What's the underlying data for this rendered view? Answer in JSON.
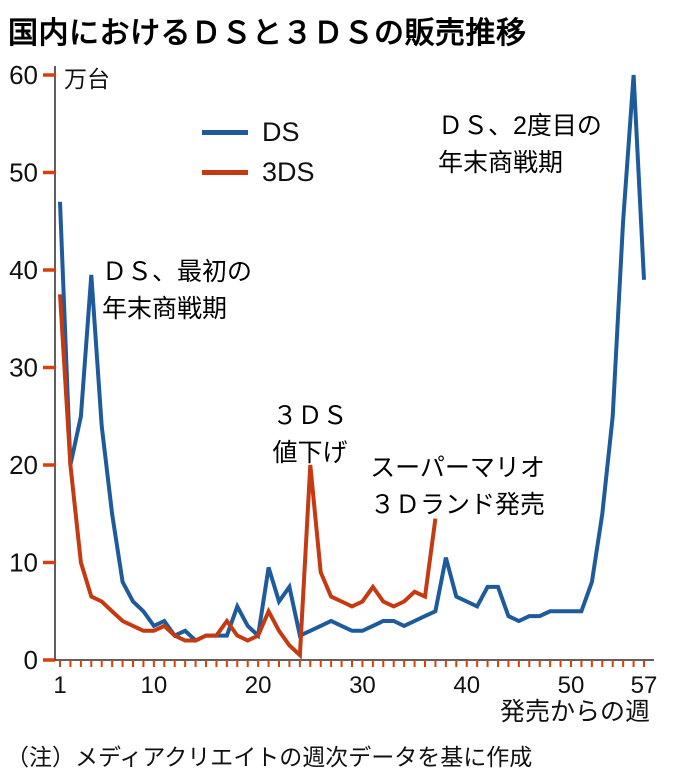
{
  "title": "国内におけるＤＳと３ＤＳの販売推移",
  "unit_label": "万台",
  "note": "（注）メディアクリエイトの週次データを基に作成",
  "chart_data": {
    "type": "line",
    "title": "国内におけるＤＳと３ＤＳの販売推移",
    "unit_label": "万台",
    "xlabel": "発売からの週",
    "ylabel": "万台",
    "xlim": [
      1,
      57
    ],
    "ylim": [
      0,
      60
    ],
    "x_ticks": [
      1,
      10,
      20,
      30,
      40,
      50,
      57
    ],
    "y_ticks": [
      0,
      10,
      20,
      30,
      40,
      50,
      60
    ],
    "grid": false,
    "legend_position": "upper-left-inside",
    "colors": {
      "axis": "#2b2b2b",
      "tick": "#d6400f",
      "ds": "#1e5b9d",
      "3ds": "#c53a10"
    },
    "series": [
      {
        "name": "DS",
        "color": "#1e5b9d",
        "x_start": 1,
        "values": [
          47,
          20,
          25,
          39.5,
          24,
          15,
          8,
          6,
          5,
          3.5,
          4,
          2.5,
          3,
          2,
          2.5,
          2.5,
          2.5,
          5.5,
          3.5,
          2.5,
          9.5,
          6,
          7.5,
          2.5,
          3,
          3.5,
          4,
          3.5,
          3,
          3,
          3.5,
          4,
          4,
          3.5,
          4,
          4.5,
          5,
          10.5,
          6.5,
          6,
          5.5,
          7.5,
          7.5,
          4.5,
          4,
          4.5,
          4.5,
          5,
          5,
          5,
          5,
          8,
          15,
          25,
          45,
          60,
          39
        ]
      },
      {
        "name": "3DS",
        "color": "#c53a10",
        "x_start": 1,
        "values": [
          37.5,
          20,
          10,
          6.5,
          6,
          5,
          4,
          3.5,
          3,
          3,
          3.5,
          2.5,
          2,
          2,
          2.5,
          2.5,
          4,
          2.5,
          2,
          2.5,
          5,
          3,
          1.5,
          0.5,
          20,
          9,
          6.5,
          6,
          5.5,
          6,
          7.5,
          6,
          5.5,
          6,
          7,
          6.5,
          14.5
        ]
      }
    ],
    "annotations": [
      {
        "id": "ds-first-holiday",
        "text": "ＤＳ、最初の\n年末商戦期"
      },
      {
        "id": "3ds-price-cut",
        "text": "３ＤＳ\n値下げ"
      },
      {
        "id": "mario-3d-land",
        "text": "スーパーマリオ\n３Ｄランド発売"
      },
      {
        "id": "ds-second-holiday",
        "text": "ＤＳ、2度目の\n年末商戦期"
      }
    ]
  }
}
